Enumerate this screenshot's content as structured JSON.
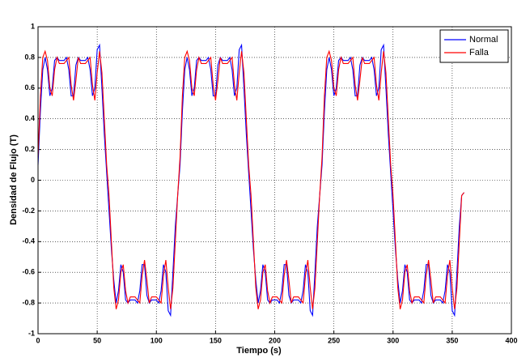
{
  "chart_data": {
    "type": "line",
    "xlabel": "Tiempo (s)",
    "ylabel": "Densidad de Flujo (T)",
    "xlim": [
      0,
      400
    ],
    "ylim": [
      -1,
      1
    ],
    "xticks": [
      0,
      50,
      100,
      150,
      200,
      250,
      300,
      350,
      400
    ],
    "yticks": [
      -1,
      -0.8,
      -0.6,
      -0.4,
      -0.2,
      0,
      0.2,
      0.4,
      0.6,
      0.8,
      1
    ],
    "grid": true,
    "legend": "top-right",
    "x": [
      0,
      2,
      4,
      6,
      8,
      10,
      12,
      14,
      16,
      18,
      20,
      22,
      24,
      26,
      28,
      30,
      32,
      34,
      36,
      38,
      40,
      42,
      44,
      46,
      48,
      50,
      52,
      54,
      56,
      58,
      60,
      62,
      64,
      66,
      68,
      70,
      72,
      74,
      76,
      78,
      80,
      82,
      84,
      86,
      88,
      90,
      92,
      94,
      96,
      98,
      100,
      102,
      104,
      106,
      108,
      110,
      112,
      114,
      116,
      118,
      120,
      122,
      124,
      126,
      128,
      130,
      132,
      134,
      136,
      138,
      140,
      142,
      144,
      146,
      148,
      150,
      152,
      154,
      156,
      158,
      160,
      162,
      164,
      166,
      168,
      170,
      172,
      174,
      176,
      178,
      180,
      182,
      184,
      186,
      188,
      190,
      192,
      194,
      196,
      198,
      200,
      202,
      204,
      206,
      208,
      210,
      212,
      214,
      216,
      218,
      220,
      222,
      224,
      226,
      228,
      230,
      232,
      234,
      236,
      238,
      240,
      242,
      244,
      246,
      248,
      250,
      252,
      254,
      256,
      258,
      260,
      262,
      264,
      266,
      268,
      270,
      272,
      274,
      276,
      278,
      280,
      282,
      284,
      286,
      288,
      290,
      292,
      294,
      296,
      298,
      300,
      302,
      304,
      306,
      308,
      310,
      312,
      314,
      316,
      318,
      320,
      322,
      324,
      326,
      328,
      330,
      332,
      334,
      336,
      338,
      340,
      342,
      344,
      346,
      348,
      350,
      352,
      354,
      356,
      358,
      360
    ],
    "series": [
      {
        "name": "Normal",
        "color": "#0000ff",
        "values": [
          0.1,
          0.45,
          0.72,
          0.8,
          0.72,
          0.55,
          0.6,
          0.78,
          0.8,
          0.78,
          0.78,
          0.78,
          0.8,
          0.72,
          0.55,
          0.55,
          0.75,
          0.8,
          0.78,
          0.78,
          0.78,
          0.8,
          0.72,
          0.55,
          0.6,
          0.85,
          0.88,
          0.6,
          0.3,
          0.05,
          -0.2,
          -0.45,
          -0.65,
          -0.8,
          -0.72,
          -0.55,
          -0.6,
          -0.78,
          -0.8,
          -0.78,
          -0.78,
          -0.78,
          -0.8,
          -0.72,
          -0.55,
          -0.55,
          -0.75,
          -0.8,
          -0.78,
          -0.78,
          -0.78,
          -0.8,
          -0.72,
          -0.55,
          -0.6,
          -0.85,
          -0.88,
          -0.6,
          -0.3,
          -0.1,
          0.1,
          0.45,
          0.72,
          0.8,
          0.72,
          0.55,
          0.6,
          0.78,
          0.8,
          0.78,
          0.78,
          0.78,
          0.8,
          0.72,
          0.55,
          0.55,
          0.75,
          0.8,
          0.78,
          0.78,
          0.78,
          0.8,
          0.72,
          0.55,
          0.6,
          0.85,
          0.88,
          0.6,
          0.3,
          0.05,
          -0.2,
          -0.45,
          -0.65,
          -0.8,
          -0.72,
          -0.55,
          -0.6,
          -0.78,
          -0.8,
          -0.78,
          -0.78,
          -0.78,
          -0.8,
          -0.72,
          -0.55,
          -0.55,
          -0.75,
          -0.8,
          -0.78,
          -0.78,
          -0.78,
          -0.8,
          -0.72,
          -0.55,
          -0.6,
          -0.85,
          -0.88,
          -0.6,
          -0.3,
          -0.1,
          0.1,
          0.45,
          0.72,
          0.8,
          0.72,
          0.55,
          0.6,
          0.78,
          0.8,
          0.78,
          0.78,
          0.78,
          0.8,
          0.72,
          0.55,
          0.55,
          0.75,
          0.8,
          0.78,
          0.78,
          0.78,
          0.8,
          0.72,
          0.55,
          0.6,
          0.85,
          0.88,
          0.6,
          0.3,
          0.05,
          -0.2,
          -0.45,
          -0.65,
          -0.8,
          -0.72,
          -0.55,
          -0.6,
          -0.78,
          -0.8,
          -0.78,
          -0.78,
          -0.78,
          -0.8,
          -0.72,
          -0.55,
          -0.55,
          -0.75,
          -0.8,
          -0.78,
          -0.78,
          -0.78,
          -0.8,
          -0.72,
          -0.55,
          -0.6,
          -0.85,
          -0.88,
          -0.6,
          -0.3,
          -0.1,
          -0.08
        ]
      },
      {
        "name": "Falla",
        "color": "#ff0000",
        "values": [
          0.15,
          0.55,
          0.8,
          0.84,
          0.78,
          0.6,
          0.55,
          0.72,
          0.8,
          0.76,
          0.76,
          0.76,
          0.78,
          0.8,
          0.62,
          0.52,
          0.65,
          0.8,
          0.76,
          0.76,
          0.76,
          0.78,
          0.8,
          0.62,
          0.52,
          0.7,
          0.84,
          0.7,
          0.4,
          0.1,
          -0.1,
          -0.4,
          -0.7,
          -0.84,
          -0.78,
          -0.6,
          -0.55,
          -0.72,
          -0.8,
          -0.76,
          -0.76,
          -0.76,
          -0.78,
          -0.8,
          -0.62,
          -0.52,
          -0.65,
          -0.8,
          -0.76,
          -0.76,
          -0.76,
          -0.78,
          -0.8,
          -0.62,
          -0.52,
          -0.7,
          -0.84,
          -0.7,
          -0.4,
          -0.1,
          0.15,
          0.55,
          0.8,
          0.84,
          0.78,
          0.6,
          0.55,
          0.72,
          0.8,
          0.76,
          0.76,
          0.76,
          0.78,
          0.8,
          0.62,
          0.52,
          0.65,
          0.8,
          0.76,
          0.76,
          0.76,
          0.78,
          0.8,
          0.62,
          0.52,
          0.7,
          0.84,
          0.7,
          0.4,
          0.1,
          -0.1,
          -0.4,
          -0.7,
          -0.84,
          -0.78,
          -0.6,
          -0.55,
          -0.72,
          -0.8,
          -0.76,
          -0.76,
          -0.76,
          -0.78,
          -0.8,
          -0.62,
          -0.52,
          -0.65,
          -0.8,
          -0.76,
          -0.76,
          -0.76,
          -0.78,
          -0.8,
          -0.62,
          -0.52,
          -0.7,
          -0.84,
          -0.7,
          -0.4,
          -0.1,
          0.15,
          0.55,
          0.8,
          0.84,
          0.78,
          0.6,
          0.55,
          0.72,
          0.8,
          0.76,
          0.76,
          0.76,
          0.78,
          0.8,
          0.62,
          0.52,
          0.65,
          0.8,
          0.76,
          0.76,
          0.76,
          0.78,
          0.8,
          0.62,
          0.52,
          0.7,
          0.84,
          0.7,
          0.4,
          0.1,
          -0.1,
          -0.4,
          -0.7,
          -0.84,
          -0.78,
          -0.6,
          -0.55,
          -0.72,
          -0.8,
          -0.76,
          -0.76,
          -0.76,
          -0.78,
          -0.8,
          -0.62,
          -0.52,
          -0.65,
          -0.8,
          -0.76,
          -0.76,
          -0.76,
          -0.78,
          -0.8,
          -0.62,
          -0.52,
          -0.7,
          -0.84,
          -0.7,
          -0.4,
          -0.1,
          -0.08
        ]
      }
    ]
  }
}
